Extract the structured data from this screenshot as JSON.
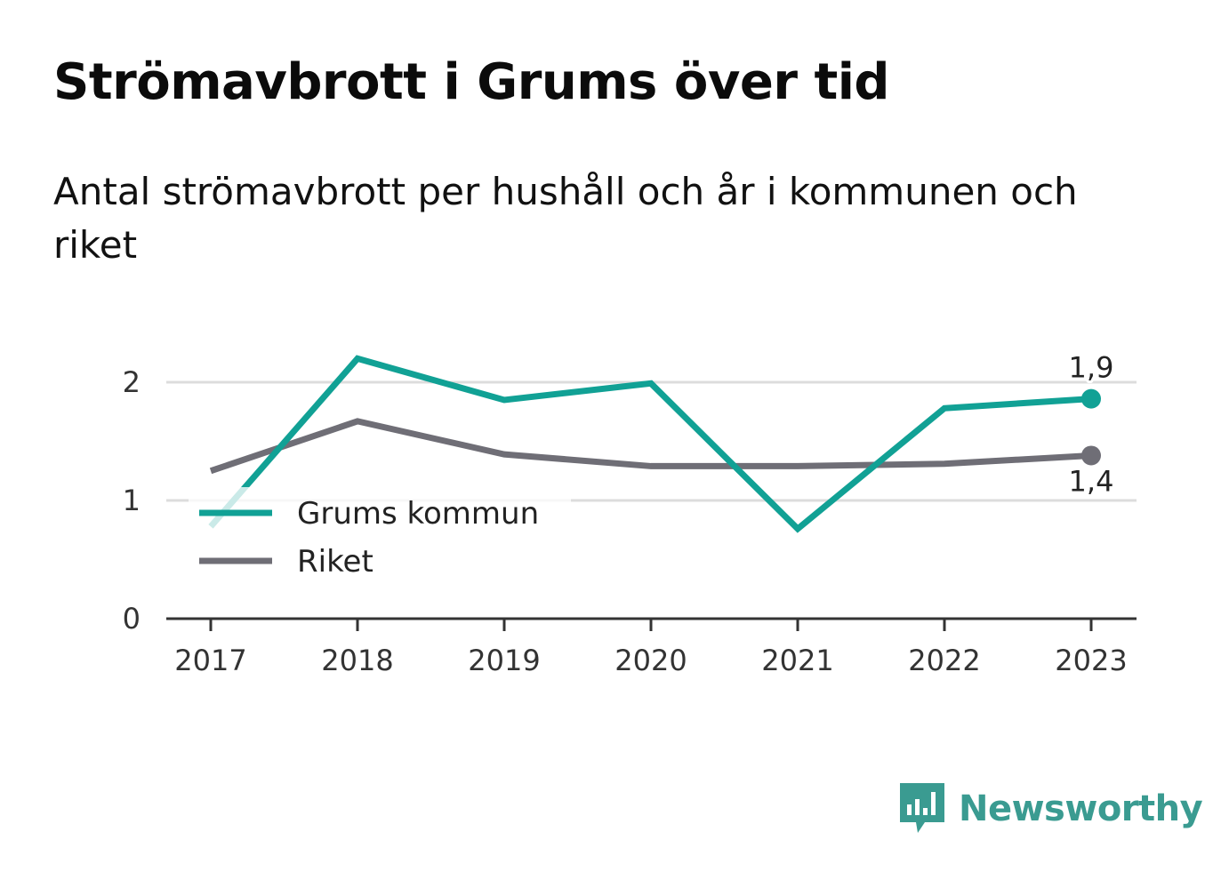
{
  "header": {
    "title": "Strömavbrott i Grums över tid",
    "subtitle": "Antal strömavbrott per hushåll och år i kommunen och riket"
  },
  "brand": {
    "name": "Newsworthy",
    "icon": "bar-chart-speech-bubble-icon",
    "color": "#3a9b91"
  },
  "chart_data": {
    "type": "line",
    "title": "Strömavbrott i Grums över tid",
    "subtitle": "Antal strömavbrott per hushåll och år i kommunen och riket",
    "xlabel": "",
    "ylabel": "",
    "x": [
      "2017",
      "2018",
      "2019",
      "2020",
      "2021",
      "2022",
      "2023"
    ],
    "ylim": [
      0,
      2.5
    ],
    "yticks": [
      0,
      1,
      2
    ],
    "ytick_labels": [
      "0",
      "1",
      "2"
    ],
    "grid": true,
    "legend_position": "bottom-left",
    "series": [
      {
        "name": "Grums kommun",
        "color": "#11a195",
        "values": [
          0.78,
          2.2,
          1.85,
          1.99,
          0.76,
          1.78,
          1.86
        ],
        "end_label": "1,9"
      },
      {
        "name": "Riket",
        "color": "#6f6e76",
        "values": [
          1.25,
          1.67,
          1.39,
          1.29,
          1.29,
          1.31,
          1.38
        ],
        "end_label": "1,4"
      }
    ]
  }
}
